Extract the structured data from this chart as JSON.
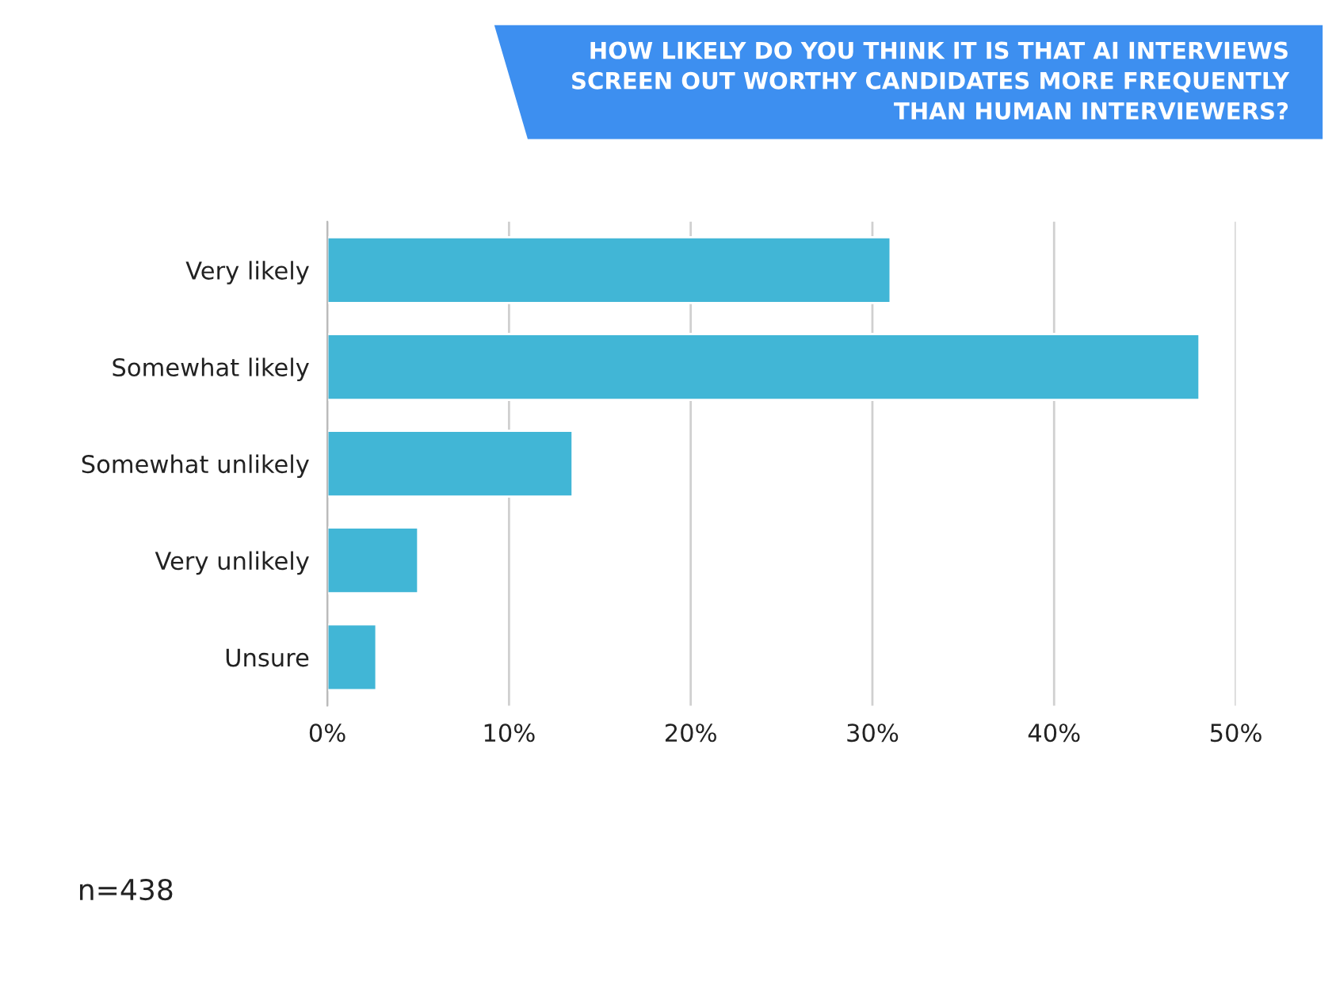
{
  "chart_data": {
    "type": "bar",
    "orientation": "horizontal",
    "title": "HOW LIKELY DO YOU THINK IT IS THAT AI INTERVIEWS\nSCREEN OUT WORTHY CANDIDATES MORE FREQUENTLY\nTHAN HUMAN INTERVIEWERS?",
    "categories": [
      "Very likely",
      "Somewhat likely",
      "Somewhat unlikely",
      "Very unlikely",
      "Unsure"
    ],
    "values": [
      31,
      48,
      13.5,
      5,
      2.7
    ],
    "color": "#41b6d6",
    "xlim": [
      0,
      50
    ],
    "xticks": [
      {
        "value": 0,
        "label": "0%"
      },
      {
        "value": 10,
        "label": "10%"
      },
      {
        "value": 20,
        "label": "20%"
      },
      {
        "value": 30,
        "label": "30%"
      },
      {
        "value": 40,
        "label": "40%"
      },
      {
        "value": 50,
        "label": "50%"
      }
    ],
    "grid": "x",
    "annotations": [
      "n=438"
    ]
  }
}
